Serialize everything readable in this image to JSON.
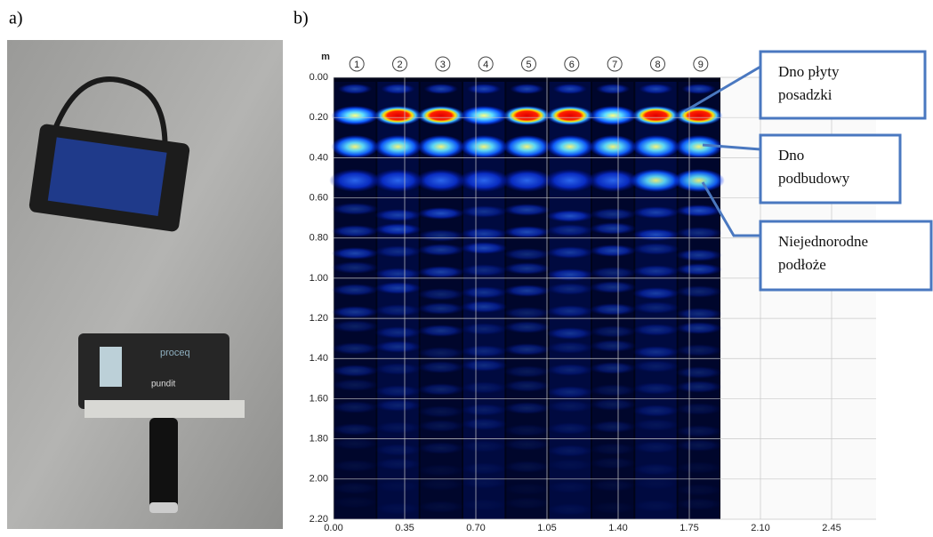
{
  "panels": [
    {
      "label": "a)",
      "device_labels": [
        "proceq",
        "pundit"
      ]
    },
    {
      "label": "b)",
      "axis_unit": "m",
      "y_ticks": [
        "0.00",
        "0.20",
        "0.40",
        "0.60",
        "0.80",
        "1.00",
        "1.20",
        "1.40",
        "1.60",
        "1.80",
        "2.00",
        "2.20"
      ],
      "x_ticks": [
        "0.00",
        "0.35",
        "0.70",
        "1.05",
        "1.40",
        "1.75",
        "2.10",
        "2.45"
      ],
      "columns": [
        "1",
        "2",
        "3",
        "4",
        "5",
        "6",
        "7",
        "8",
        "9"
      ],
      "annotations": [
        {
          "lines": [
            "Dno płyty",
            "posadzki"
          ]
        },
        {
          "lines": [
            "Dno",
            "podbudowy"
          ]
        },
        {
          "lines": [
            "Niejednorodne",
            "podłoże"
          ]
        }
      ]
    }
  ]
}
